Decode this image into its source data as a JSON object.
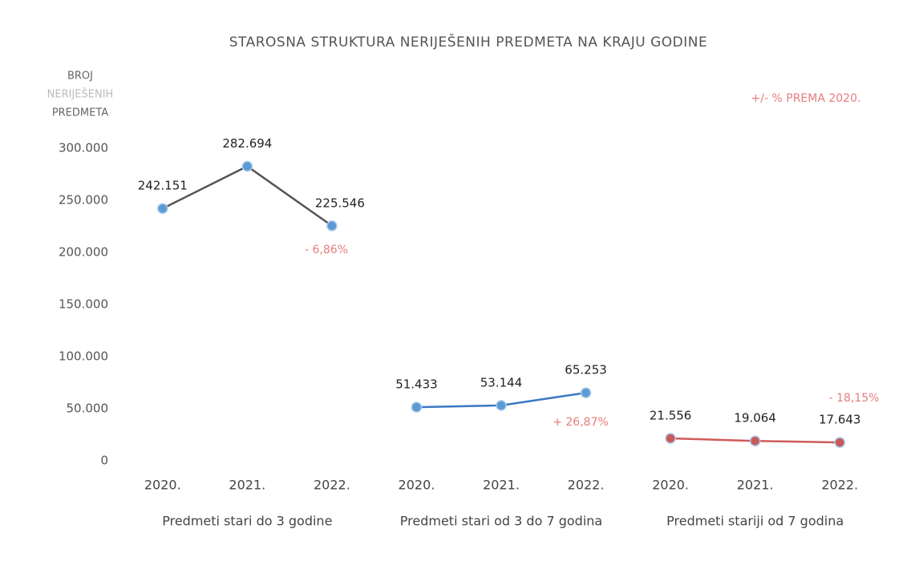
{
  "chart_data": {
    "type": "line",
    "title": "STAROSNA STRUKTURA NERIJEŠENIH PREDMETA NA KRAJU GODINE",
    "y_label_lines": [
      "BROJ",
      "NERIJEŠENIH",
      "PREDMETA"
    ],
    "categories": [
      "2020.",
      "2021.",
      "2022.",
      "2020.",
      "2021.",
      "2022.",
      "2020.",
      "2021.",
      "2022."
    ],
    "category_groups": [
      "Predmeti stari do 3 godine",
      "Predmeti stari od 3 do 7 godina",
      "Predmeti stariji od 7 godina"
    ],
    "series": [
      {
        "color": "#555555",
        "marker_color": "#5b9bd5",
        "values": [
          242151,
          282694,
          225546,
          null,
          null,
          null,
          null,
          null,
          null
        ],
        "value_labels": [
          "242.151",
          "282.694",
          "225.546",
          null,
          null,
          null,
          null,
          null,
          null
        ]
      },
      {
        "color": "#3a78c2",
        "marker_color": "#5b9bd5",
        "values": [
          null,
          null,
          null,
          51433,
          53144,
          65253,
          null,
          null,
          null
        ],
        "value_labels": [
          null,
          null,
          null,
          "51.433",
          "53.144",
          "65.253",
          null,
          null,
          null
        ]
      },
      {
        "color": "#d05a5a",
        "marker_color": "#c85a5a",
        "values": [
          null,
          null,
          null,
          null,
          null,
          null,
          21556,
          19064,
          17643
        ],
        "value_labels": [
          null,
          null,
          null,
          null,
          null,
          null,
          "21.556",
          "19.064",
          "17.643"
        ]
      }
    ],
    "annotations": [
      "+/- % PREMA 2020.",
      "- 6,86%",
      "+ 26,87%",
      "- 18,15%"
    ],
    "ylim": [
      0,
      300000
    ],
    "yticks": [
      0,
      {
        "value": 50000,
        "label": "50.000"
      },
      {
        "value": 100000,
        "label": "100.000"
      },
      {
        "value": 150000,
        "label": "150.000"
      },
      {
        "value": 200000,
        "label": "200.000"
      },
      {
        "value": 250000,
        "label": "250.000"
      },
      {
        "value": 300000,
        "label": "300.000"
      }
    ],
    "grid": false
  }
}
